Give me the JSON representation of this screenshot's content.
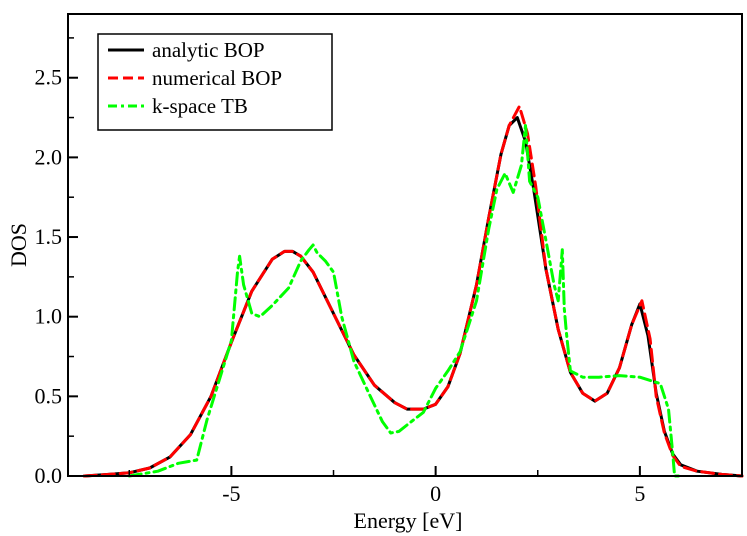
{
  "chart_data": {
    "type": "line",
    "title": "",
    "xlabel": "Energy [eV]",
    "ylabel": "DOS",
    "xlim": [
      -9,
      7.5
    ],
    "ylim": [
      0,
      2.9
    ],
    "grid": false,
    "legend_position": "top-left",
    "x_ticks": [
      {
        "value": -5,
        "label": "-5"
      },
      {
        "value": 0,
        "label": "0"
      },
      {
        "value": 5,
        "label": "5"
      }
    ],
    "y_ticks": [
      {
        "value": 0.0,
        "label": "0.0"
      },
      {
        "value": 0.5,
        "label": "0.5"
      },
      {
        "value": 1.0,
        "label": "1.0"
      },
      {
        "value": 1.5,
        "label": "1.5"
      },
      {
        "value": 2.0,
        "label": "2.0"
      },
      {
        "value": 2.5,
        "label": "2.5"
      }
    ],
    "series": [
      {
        "name": "analytic BOP",
        "color": "#000000",
        "style": "solid",
        "x": [
          -8.6,
          -8.0,
          -7.5,
          -7.0,
          -6.5,
          -6.0,
          -5.5,
          -5.0,
          -4.5,
          -4.0,
          -3.7,
          -3.5,
          -3.3,
          -3.0,
          -2.5,
          -2.0,
          -1.5,
          -1.0,
          -0.7,
          -0.3,
          0.0,
          0.3,
          0.6,
          1.0,
          1.3,
          1.6,
          1.8,
          2.0,
          2.2,
          2.4,
          2.7,
          3.0,
          3.3,
          3.6,
          3.9,
          4.2,
          4.5,
          4.8,
          5.0,
          5.2,
          5.4,
          5.6,
          5.8,
          6.0,
          6.4,
          7.0,
          7.5
        ],
        "y": [
          0.0,
          0.01,
          0.02,
          0.05,
          0.12,
          0.26,
          0.5,
          0.84,
          1.16,
          1.36,
          1.41,
          1.41,
          1.38,
          1.28,
          1.02,
          0.76,
          0.57,
          0.46,
          0.42,
          0.42,
          0.45,
          0.56,
          0.77,
          1.2,
          1.62,
          2.02,
          2.2,
          2.25,
          2.1,
          1.8,
          1.3,
          0.92,
          0.65,
          0.52,
          0.47,
          0.52,
          0.68,
          0.95,
          1.08,
          0.88,
          0.52,
          0.28,
          0.14,
          0.07,
          0.03,
          0.01,
          0.0
        ]
      },
      {
        "name": "numerical BOP",
        "color": "#ff0000",
        "style": "dashed",
        "x": [
          -8.6,
          -8.0,
          -7.5,
          -7.0,
          -6.5,
          -6.0,
          -5.5,
          -5.0,
          -4.5,
          -4.0,
          -3.7,
          -3.5,
          -3.3,
          -3.0,
          -2.5,
          -2.0,
          -1.5,
          -1.0,
          -0.7,
          -0.3,
          0.0,
          0.3,
          0.6,
          1.0,
          1.3,
          1.6,
          1.8,
          2.05,
          2.25,
          2.45,
          2.7,
          3.0,
          3.3,
          3.6,
          3.9,
          4.2,
          4.5,
          4.8,
          5.05,
          5.25,
          5.4,
          5.6,
          5.8,
          6.0,
          6.4,
          7.0,
          7.5
        ],
        "y": [
          0.0,
          0.01,
          0.02,
          0.05,
          0.12,
          0.26,
          0.5,
          0.84,
          1.16,
          1.36,
          1.41,
          1.41,
          1.38,
          1.28,
          1.02,
          0.76,
          0.57,
          0.46,
          0.42,
          0.42,
          0.45,
          0.56,
          0.77,
          1.2,
          1.62,
          2.02,
          2.2,
          2.32,
          2.15,
          1.82,
          1.3,
          0.92,
          0.65,
          0.52,
          0.47,
          0.52,
          0.68,
          0.95,
          1.1,
          0.86,
          0.5,
          0.27,
          0.13,
          0.06,
          0.03,
          0.01,
          0.0
        ]
      },
      {
        "name": "k-space TB",
        "color": "#00ff00",
        "style": "dashdot",
        "x": [
          -7.5,
          -6.8,
          -6.3,
          -5.85,
          -5.6,
          -5.0,
          -4.85,
          -4.8,
          -4.7,
          -4.5,
          -4.3,
          -4.0,
          -3.6,
          -3.3,
          -3.1,
          -3.0,
          -2.9,
          -2.7,
          -2.5,
          -2.3,
          -2.0,
          -1.6,
          -1.3,
          -1.1,
          -0.9,
          -0.6,
          -0.3,
          0.0,
          0.3,
          0.6,
          1.0,
          1.3,
          1.5,
          1.7,
          1.9,
          2.1,
          2.2,
          2.3,
          2.5,
          2.7,
          2.9,
          3.0,
          3.1,
          3.15,
          3.2,
          3.3,
          3.6,
          4.0,
          4.5,
          5.0,
          5.5,
          5.7,
          5.8,
          5.85,
          6.0
        ],
        "y": [
          0.0,
          0.03,
          0.08,
          0.1,
          0.35,
          0.85,
          1.28,
          1.38,
          1.2,
          1.02,
          1.0,
          1.07,
          1.18,
          1.35,
          1.42,
          1.45,
          1.4,
          1.35,
          1.28,
          1.0,
          0.72,
          0.5,
          0.34,
          0.27,
          0.28,
          0.34,
          0.4,
          0.55,
          0.66,
          0.78,
          1.1,
          1.55,
          1.8,
          1.9,
          1.78,
          1.95,
          2.2,
          1.85,
          1.75,
          1.48,
          1.2,
          1.1,
          1.42,
          1.05,
          0.9,
          0.66,
          0.62,
          0.62,
          0.63,
          0.62,
          0.58,
          0.42,
          0.15,
          0.0,
          0.0
        ]
      }
    ]
  }
}
